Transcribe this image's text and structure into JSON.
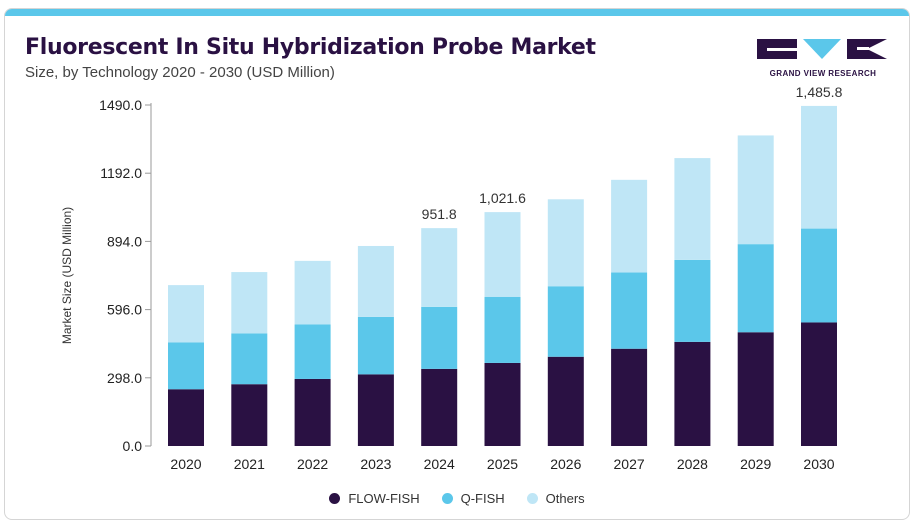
{
  "header": {
    "title": "Fluorescent In Situ Hybridization Probe Market",
    "subtitle": "Size, by Technology 2020 - 2030 (USD Million)",
    "logo_text": "GRAND VIEW RESEARCH"
  },
  "colors": {
    "accent_bar": "#5bc7ea",
    "flow_fish": "#2a1143",
    "q_fish": "#5bc7ea",
    "others": "#bfe6f6",
    "title": "#2a1143"
  },
  "chart_data": {
    "type": "bar",
    "stacked": true,
    "title": "Fluorescent In Situ Hybridization Probe Market",
    "subtitle": "Size, by Technology 2020 - 2030 (USD Million)",
    "xlabel": "",
    "ylabel": "Market Size (USD Million)",
    "ylim": [
      0,
      1490
    ],
    "yticks": [
      "0.0",
      "298.0",
      "596.0",
      "894.0",
      "1192.0",
      "1490.0"
    ],
    "ytick_values": [
      0,
      298,
      596,
      894,
      1192,
      1490
    ],
    "grid": false,
    "legend_position": "bottom",
    "categories": [
      "2020",
      "2021",
      "2022",
      "2023",
      "2024",
      "2025",
      "2026",
      "2027",
      "2028",
      "2029",
      "2030"
    ],
    "series": [
      {
        "name": "FLOW-FISH",
        "color": "#2a1143",
        "values": [
          248,
          270,
          293,
          313,
          337,
          363,
          390,
          425,
          455,
          497,
          540
        ]
      },
      {
        "name": "Q-FISH",
        "color": "#5bc7ea",
        "values": [
          205,
          222,
          238,
          251,
          271,
          289,
          308,
          333,
          358,
          385,
          410
        ]
      },
      {
        "name": "Others",
        "color": "#bfe6f6",
        "values": [
          250,
          268,
          278,
          310,
          344,
          370,
          380,
          405,
          445,
          475,
          536
        ]
      }
    ],
    "annotations": [
      {
        "category": "2024",
        "label": "951.8"
      },
      {
        "category": "2025",
        "label": "1,021.6"
      },
      {
        "category": "2030",
        "label": "1,485.8"
      }
    ]
  },
  "legend": [
    {
      "label": "FLOW-FISH",
      "color": "#2a1143"
    },
    {
      "label": "Q-FISH",
      "color": "#5bc7ea"
    },
    {
      "label": "Others",
      "color": "#bfe6f6"
    }
  ]
}
